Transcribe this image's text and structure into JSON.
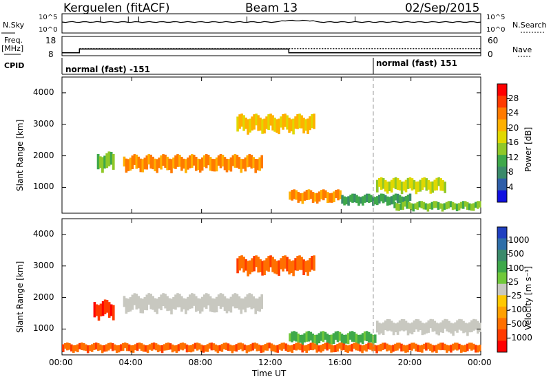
{
  "header": {
    "station": "Kerguelen (fitACF)",
    "beam": "Beam 13",
    "date": "02/Sep/2015"
  },
  "strips": {
    "nsky_label": "N.Sky",
    "nsky_ticks": [
      "10^5",
      "10^0"
    ],
    "nsearch_label": "N.Search",
    "freq_label": "Freq.",
    "freq_unit": "[MHz]",
    "freq_ticks": [
      "18",
      "8"
    ],
    "nave_label": "Nave",
    "nave_ticks": [
      "60",
      "0"
    ],
    "cpid_label": "CPID",
    "cpid_segments": [
      {
        "start_hour": 0,
        "label": "normal (fast) -151"
      },
      {
        "start_hour": 18,
        "label": "normal (fast) 151"
      }
    ],
    "freq_steps": [
      {
        "hour": 0,
        "mhz": 9.5
      },
      {
        "hour": 1,
        "mhz": 11.5
      },
      {
        "hour": 13,
        "mhz": 9.5
      },
      {
        "hour": 24,
        "mhz": 9.5
      }
    ],
    "nave_level": 22
  },
  "power_panel": {
    "ylabel": "Slant Range [km]",
    "yticks": [
      "4000",
      "3000",
      "2000",
      "1000"
    ],
    "colorbar_label": "Power [dB]",
    "colorbar_ticks": [
      "28",
      "24",
      "20",
      "16",
      "12",
      "8",
      "4"
    ],
    "colorbar_colors": [
      "#ff0000",
      "#ff3a00",
      "#ff7a00",
      "#ffb000",
      "#e0d800",
      "#90c828",
      "#3ea84a",
      "#3a8a6a",
      "#2e5ea8",
      "#1010e0"
    ]
  },
  "velocity_panel": {
    "ylabel": "Slant Range [km]",
    "yticks": [
      "4000",
      "3000",
      "2000",
      "1000"
    ],
    "colorbar_label": "Velocity [m s⁻¹]",
    "colorbar_ticks": [
      "1000",
      "500",
      "100",
      "25",
      "-25",
      "-100",
      "-500",
      "-1000"
    ],
    "colorbar_colors": [
      "#2040c0",
      "#2e6ea8",
      "#3a8a6a",
      "#3ea84a",
      "#70c83a",
      "#c8c8c0",
      "#ffc800",
      "#ffa000",
      "#ff7000",
      "#ff3a00",
      "#ff0000"
    ]
  },
  "xaxis": {
    "label": "Time UT",
    "ticks": [
      "00:00",
      "04:00",
      "08:00",
      "12:00",
      "16:00",
      "20:00",
      "00:00"
    ]
  },
  "chart_data": [
    {
      "type": "heatmap",
      "title": "Power",
      "x_range_hours": [
        0,
        24
      ],
      "ylim": [
        180,
        4500
      ],
      "colorbar_range": [
        0,
        30
      ],
      "regions": [
        {
          "name": "",
          "t_start": 3.5,
          "t_end": 11.5,
          "range_center": 1750,
          "thickness": 450,
          "power": 24
        },
        {
          "name": "",
          "t_start": 10,
          "t_end": 14.5,
          "range_center": 3000,
          "thickness": 500,
          "power": 20
        },
        {
          "name": "",
          "t_start": 2,
          "t_end": 3,
          "range_center": 1800,
          "thickness": 500,
          "power": 12
        },
        {
          "name": "",
          "t_start": 13,
          "t_end": 16,
          "range_center": 700,
          "thickness": 350,
          "power": 22
        },
        {
          "name": "",
          "t_start": 16,
          "t_end": 20,
          "range_center": 600,
          "thickness": 300,
          "power": 10
        },
        {
          "name": "",
          "t_start": 18,
          "t_end": 22,
          "range_center": 1050,
          "thickness": 400,
          "power": 18
        },
        {
          "name": "",
          "t_start": 19,
          "t_end": 24,
          "range_center": 400,
          "thickness": 250,
          "power": 12
        }
      ]
    },
    {
      "type": "heatmap",
      "title": "Velocity",
      "x_range_hours": [
        0,
        24
      ],
      "ylim": [
        180,
        4500
      ],
      "colorbar_range": [
        -1000,
        1000
      ],
      "regions": [
        {
          "name": "",
          "t_start": 3.5,
          "t_end": 11.5,
          "range_center": 1800,
          "thickness": 500,
          "velocity": 0
        },
        {
          "name": "",
          "t_start": 10,
          "t_end": 14.5,
          "range_center": 3000,
          "thickness": 500,
          "velocity": -200
        },
        {
          "name": "",
          "t_start": 1.8,
          "t_end": 3,
          "range_center": 1600,
          "thickness": 500,
          "velocity": -800
        },
        {
          "name": "",
          "t_start": 13,
          "t_end": 18,
          "range_center": 700,
          "thickness": 350,
          "velocity": 80
        },
        {
          "name": "",
          "t_start": 18,
          "t_end": 24,
          "range_center": 1050,
          "thickness": 400,
          "velocity": 0
        },
        {
          "name": "",
          "t_start": 0,
          "t_end": 24,
          "range_center": 400,
          "thickness": 250,
          "velocity": -150
        }
      ]
    }
  ]
}
